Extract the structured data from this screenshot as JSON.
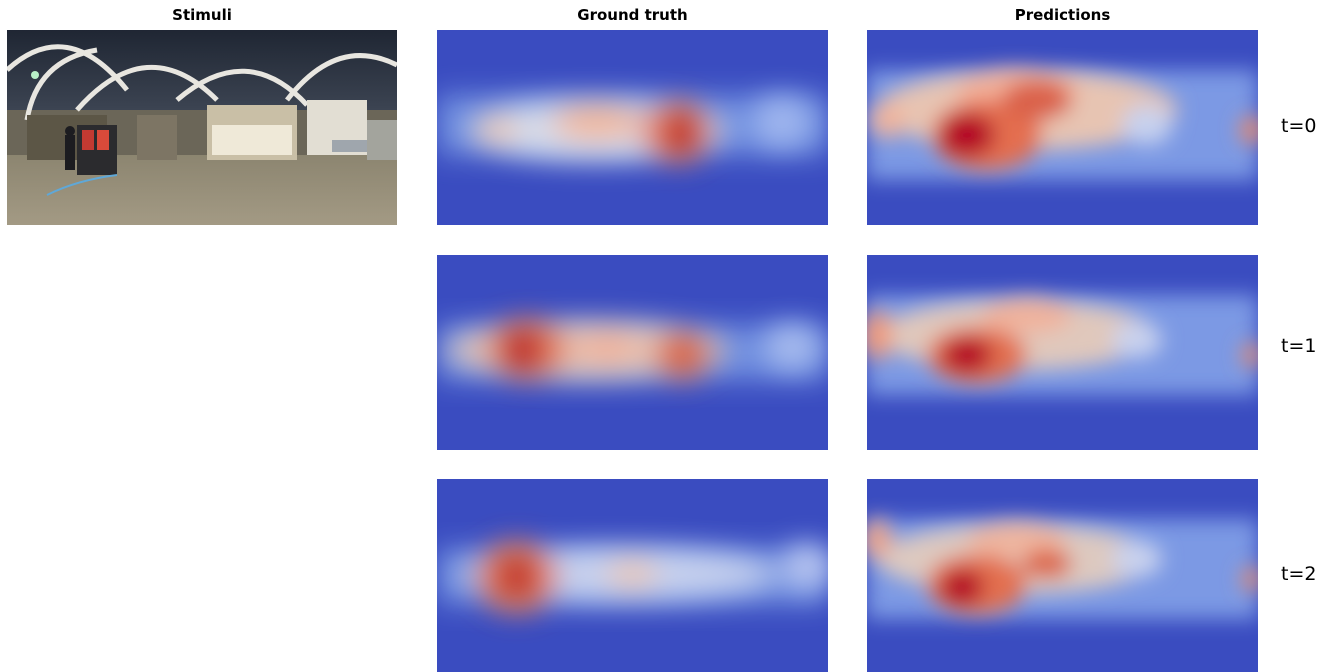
{
  "columns": {
    "stimuli": "Stimuli",
    "ground_truth": "Ground truth",
    "predictions": "Predictions"
  },
  "rows": [
    "t=0",
    "t=1",
    "t=2"
  ],
  "colormap": {
    "low": "#3a4cc0",
    "mid": "#dddddd",
    "high": "#b40426"
  }
}
